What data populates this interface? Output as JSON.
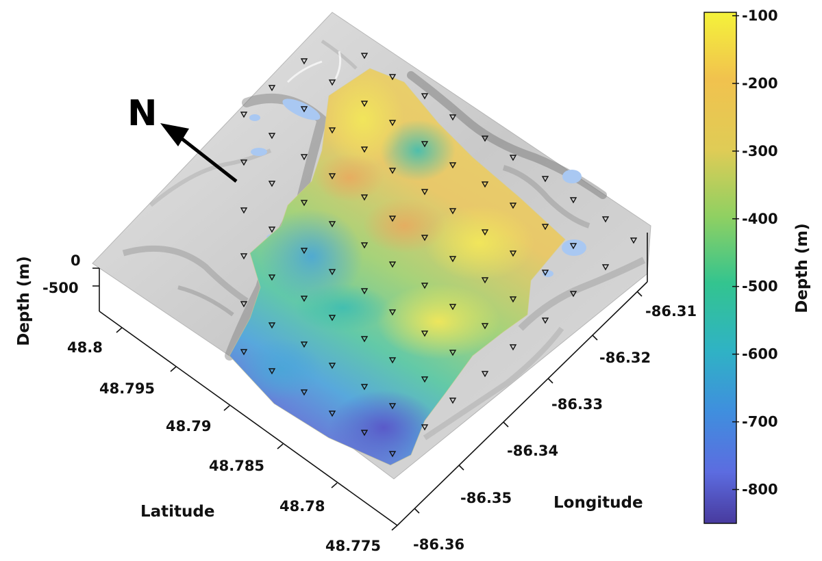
{
  "north_arrow": {
    "label": "N"
  },
  "axes": {
    "depth_title": "Depth (m)",
    "depth_ticks": [
      "0",
      "-500"
    ],
    "latitude_title": "Latitude",
    "latitude_ticks": [
      "48.8",
      "48.795",
      "48.79",
      "48.785",
      "48.78",
      "48.775"
    ],
    "longitude_title": "Longitude",
    "longitude_ticks": [
      "-86.31",
      "-86.32",
      "-86.33",
      "-86.34",
      "-86.35",
      "-86.36"
    ]
  },
  "colorbar": {
    "title": "Depth (m)",
    "range": [
      -850,
      -95
    ],
    "ticks": [
      "-100",
      "-200",
      "-300",
      "-400",
      "-500",
      "-600",
      "-700",
      "-800"
    ],
    "colors": [
      "#f4f23a",
      "#f1c24e",
      "#e4cc58",
      "#b7d15f",
      "#53c878",
      "#2fbdb8",
      "#3f93dc",
      "#5c6ce0",
      "#483a9e"
    ]
  },
  "terrain": {
    "hillshade_color": "#cfcfcf",
    "lake_color": "#a9c8f2",
    "station_marker": "inverted-triangle"
  }
}
